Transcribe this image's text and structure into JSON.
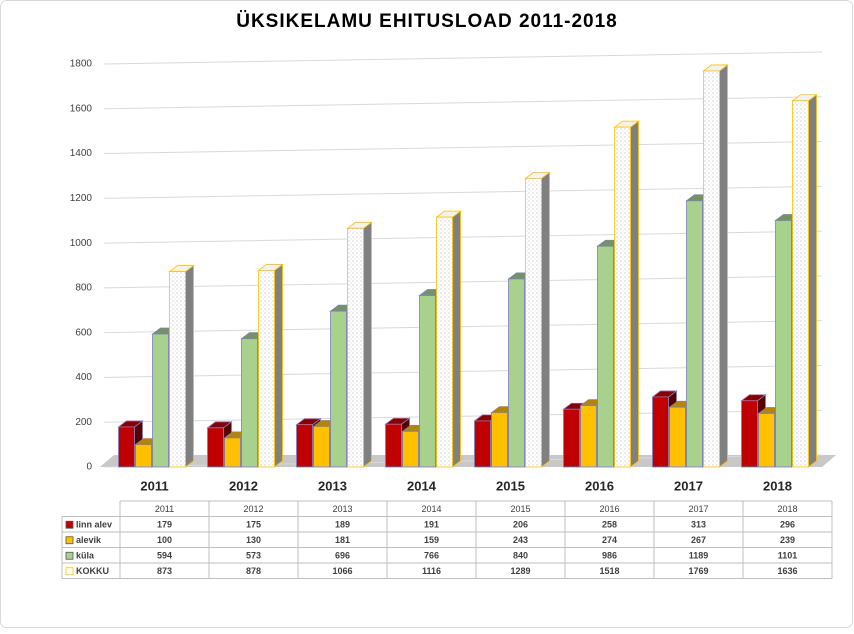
{
  "chart_data": {
    "type": "bar3d",
    "title": "ÜKSIKELAMU EHITUSLOAD 2011-2018",
    "categories": [
      "2011",
      "2012",
      "2013",
      "2014",
      "2015",
      "2016",
      "2017",
      "2018"
    ],
    "series": [
      {
        "name": "linn alev",
        "color": "#c00000",
        "values": [
          179,
          175,
          189,
          191,
          206,
          258,
          313,
          296
        ]
      },
      {
        "name": "alevik",
        "color": "#ffc000",
        "values": [
          100,
          130,
          181,
          159,
          243,
          274,
          267,
          239
        ]
      },
      {
        "name": "küla",
        "color": "#a9d18e",
        "values": [
          594,
          573,
          696,
          766,
          840,
          986,
          1189,
          1101
        ]
      },
      {
        "name": "KOKKU",
        "color": "#ffffff",
        "values": [
          873,
          878,
          1066,
          1116,
          1289,
          1518,
          1769,
          1636
        ]
      }
    ],
    "ylim": [
      0,
      1800
    ],
    "yticks": [
      0,
      200,
      400,
      600,
      800,
      1000,
      1200,
      1400,
      1600,
      1800
    ],
    "grid": true
  }
}
